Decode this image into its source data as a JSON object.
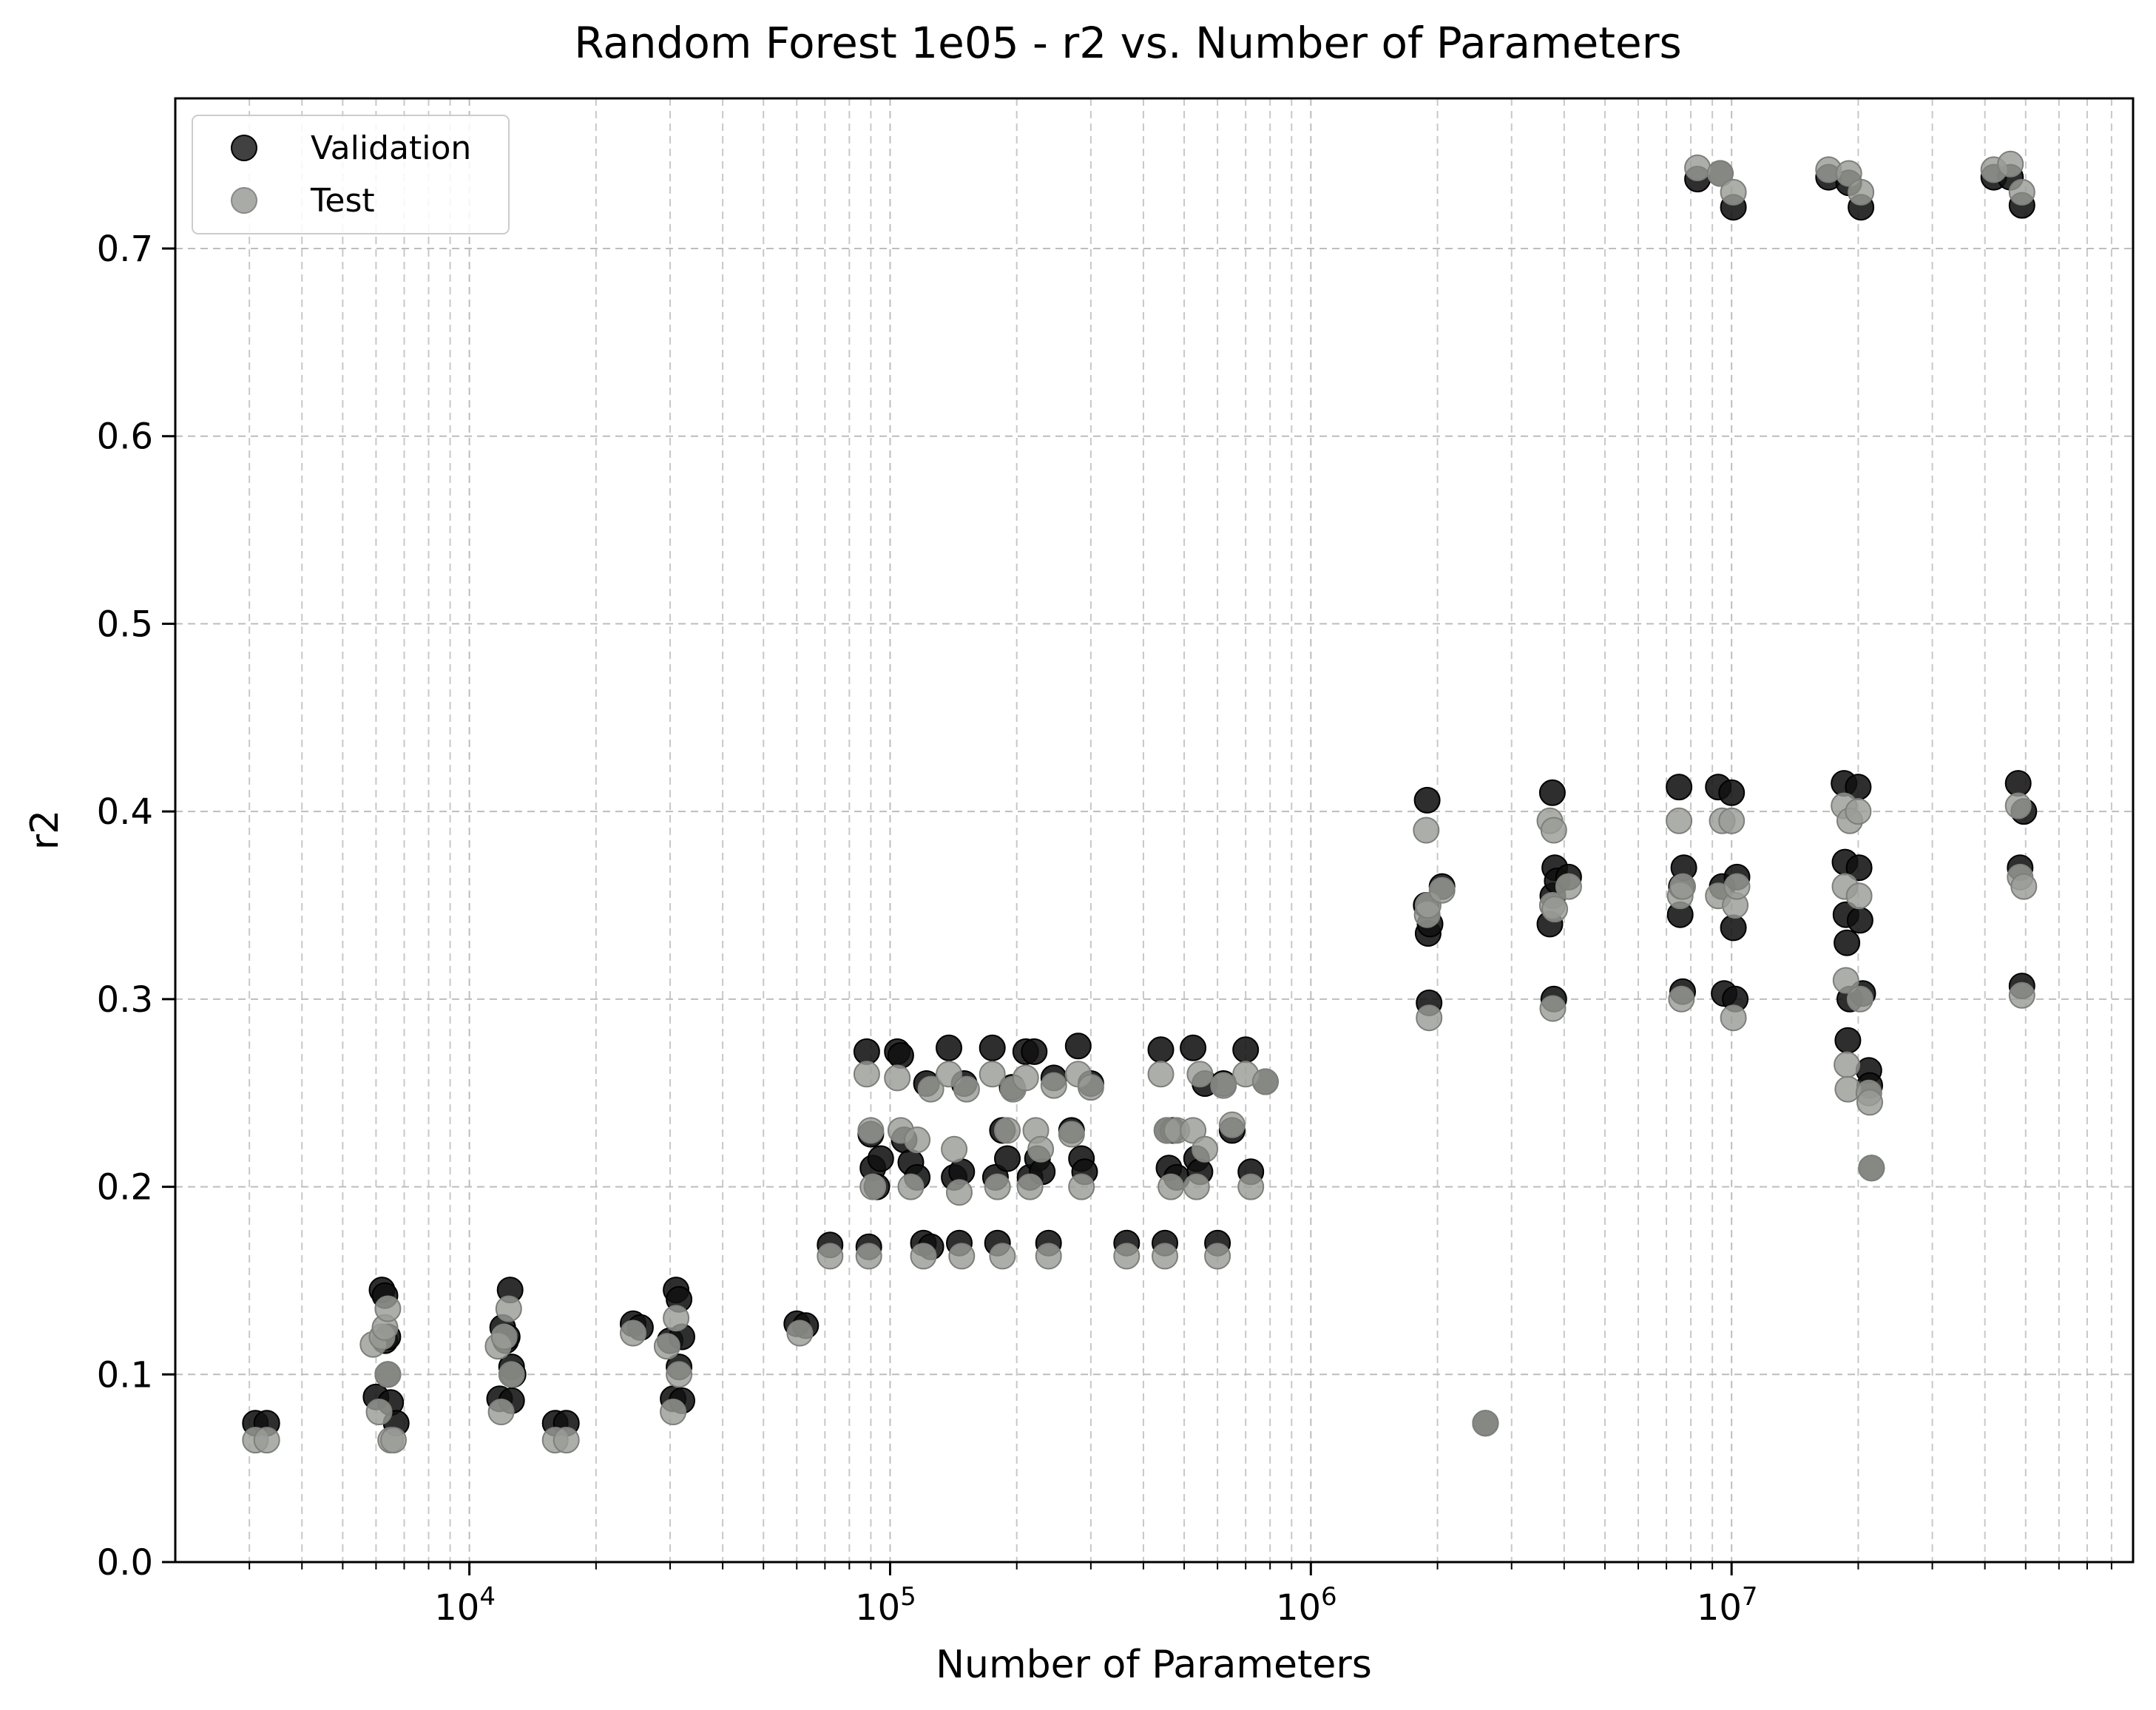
{
  "chart_data": {
    "type": "scatter",
    "title": "Random Forest 1e05 - r2 vs. Number of Parameters",
    "xlabel": "Number of Parameters",
    "ylabel": "r2",
    "xscale": "log",
    "xlim": [
      2000,
      90000000
    ],
    "ylim": [
      0.0,
      0.78
    ],
    "grid": true,
    "legend_position": "top-left",
    "x_ticks": [
      {
        "value": 10000,
        "base": "10",
        "exp": "4"
      },
      {
        "value": 100000,
        "base": "10",
        "exp": "5"
      },
      {
        "value": 1000000,
        "base": "10",
        "exp": "6"
      },
      {
        "value": 10000000,
        "base": "10",
        "exp": "7"
      }
    ],
    "y_ticks": [
      {
        "value": 0.0,
        "label": "0.0"
      },
      {
        "value": 0.1,
        "label": "0.1"
      },
      {
        "value": 0.2,
        "label": "0.2"
      },
      {
        "value": 0.3,
        "label": "0.3"
      },
      {
        "value": 0.4,
        "label": "0.4"
      },
      {
        "value": 0.5,
        "label": "0.5"
      },
      {
        "value": 0.6,
        "label": "0.6"
      },
      {
        "value": 0.7,
        "label": "0.7"
      }
    ],
    "series": [
      {
        "name": "Validation",
        "color": "#111111",
        "points": [
          [
            3100,
            0.074
          ],
          [
            3300,
            0.074
          ],
          [
            6000,
            0.088
          ],
          [
            6200,
            0.145
          ],
          [
            6300,
            0.142
          ],
          [
            6300,
            0.118
          ],
          [
            6400,
            0.12
          ],
          [
            6400,
            0.1
          ],
          [
            6500,
            0.085
          ],
          [
            6700,
            0.074
          ],
          [
            11800,
            0.087
          ],
          [
            12000,
            0.125
          ],
          [
            12200,
            0.118
          ],
          [
            12300,
            0.12
          ],
          [
            12500,
            0.145
          ],
          [
            12600,
            0.104
          ],
          [
            12700,
            0.1
          ],
          [
            12600,
            0.086
          ],
          [
            16000,
            0.074
          ],
          [
            17000,
            0.074
          ],
          [
            24500,
            0.127
          ],
          [
            25500,
            0.125
          ],
          [
            30000,
            0.118
          ],
          [
            30500,
            0.087
          ],
          [
            31000,
            0.145
          ],
          [
            31500,
            0.14
          ],
          [
            31500,
            0.104
          ],
          [
            32000,
            0.12
          ],
          [
            32000,
            0.086
          ],
          [
            60000,
            0.127
          ],
          [
            63000,
            0.126
          ],
          [
            72000,
            0.169
          ],
          [
            88000,
            0.272
          ],
          [
            89000,
            0.168
          ],
          [
            90000,
            0.228
          ],
          [
            91000,
            0.21
          ],
          [
            93000,
            0.2
          ],
          [
            95000,
            0.215
          ],
          [
            104000,
            0.272
          ],
          [
            106000,
            0.27
          ],
          [
            108000,
            0.225
          ],
          [
            112000,
            0.213
          ],
          [
            116000,
            0.205
          ],
          [
            120000,
            0.17
          ],
          [
            122000,
            0.255
          ],
          [
            125000,
            0.168
          ],
          [
            138000,
            0.274
          ],
          [
            142000,
            0.205
          ],
          [
            146000,
            0.17
          ],
          [
            148000,
            0.208
          ],
          [
            150000,
            0.255
          ],
          [
            175000,
            0.274
          ],
          [
            178000,
            0.205
          ],
          [
            180000,
            0.17
          ],
          [
            185000,
            0.23
          ],
          [
            190000,
            0.215
          ],
          [
            195000,
            0.253
          ],
          [
            210000,
            0.272
          ],
          [
            215000,
            0.205
          ],
          [
            220000,
            0.272
          ],
          [
            224000,
            0.215
          ],
          [
            230000,
            0.208
          ],
          [
            238000,
            0.17
          ],
          [
            245000,
            0.258
          ],
          [
            270000,
            0.23
          ],
          [
            280000,
            0.275
          ],
          [
            285000,
            0.215
          ],
          [
            290000,
            0.208
          ],
          [
            300000,
            0.255
          ],
          [
            365000,
            0.17
          ],
          [
            440000,
            0.273
          ],
          [
            450000,
            0.17
          ],
          [
            455000,
            0.23
          ],
          [
            460000,
            0.21
          ],
          [
            470000,
            0.23
          ],
          [
            480000,
            0.205
          ],
          [
            525000,
            0.274
          ],
          [
            535000,
            0.215
          ],
          [
            545000,
            0.208
          ],
          [
            560000,
            0.255
          ],
          [
            600000,
            0.17
          ],
          [
            620000,
            0.255
          ],
          [
            650000,
            0.23
          ],
          [
            700000,
            0.273
          ],
          [
            720000,
            0.208
          ],
          [
            780000,
            0.256
          ],
          [
            1880000,
            0.35
          ],
          [
            1890000,
            0.406
          ],
          [
            1900000,
            0.335
          ],
          [
            1910000,
            0.298
          ],
          [
            1920000,
            0.34
          ],
          [
            2050000,
            0.36
          ],
          [
            2600000,
            0.074
          ],
          [
            3700000,
            0.34
          ],
          [
            3750000,
            0.41
          ],
          [
            3760000,
            0.355
          ],
          [
            3780000,
            0.3
          ],
          [
            3800000,
            0.37
          ],
          [
            3850000,
            0.363
          ],
          [
            4100000,
            0.365
          ],
          [
            7500000,
            0.413
          ],
          [
            7550000,
            0.345
          ],
          [
            7600000,
            0.36
          ],
          [
            7650000,
            0.304
          ],
          [
            7700000,
            0.37
          ],
          [
            8300000,
            0.737
          ],
          [
            9300000,
            0.413
          ],
          [
            9400000,
            0.74
          ],
          [
            9500000,
            0.36
          ],
          [
            9600000,
            0.303
          ],
          [
            10000000,
            0.41
          ],
          [
            10100000,
            0.722
          ],
          [
            10100000,
            0.338
          ],
          [
            10200000,
            0.3
          ],
          [
            10300000,
            0.365
          ],
          [
            17000000,
            0.738
          ],
          [
            18500000,
            0.415
          ],
          [
            18600000,
            0.373
          ],
          [
            18700000,
            0.345
          ],
          [
            18800000,
            0.33
          ],
          [
            18900000,
            0.278
          ],
          [
            19000000,
            0.735
          ],
          [
            19100000,
            0.3
          ],
          [
            20000000,
            0.413
          ],
          [
            20100000,
            0.37
          ],
          [
            20200000,
            0.342
          ],
          [
            20300000,
            0.722
          ],
          [
            20500000,
            0.303
          ],
          [
            21200000,
            0.262
          ],
          [
            21300000,
            0.254
          ],
          [
            21500000,
            0.21
          ],
          [
            42000000,
            0.738
          ],
          [
            46000000,
            0.738
          ],
          [
            48000000,
            0.415
          ],
          [
            48500000,
            0.37
          ],
          [
            49000000,
            0.723
          ],
          [
            49000000,
            0.307
          ],
          [
            49500000,
            0.4
          ]
        ]
      },
      {
        "name": "Test",
        "color": "#9a9c97",
        "points": [
          [
            3100,
            0.065
          ],
          [
            3300,
            0.065
          ],
          [
            5900,
            0.116
          ],
          [
            6100,
            0.08
          ],
          [
            6200,
            0.12
          ],
          [
            6300,
            0.125
          ],
          [
            6400,
            0.135
          ],
          [
            6400,
            0.1
          ],
          [
            6500,
            0.065
          ],
          [
            6600,
            0.065
          ],
          [
            11700,
            0.115
          ],
          [
            11900,
            0.08
          ],
          [
            12100,
            0.12
          ],
          [
            12400,
            0.135
          ],
          [
            12600,
            0.1
          ],
          [
            16000,
            0.065
          ],
          [
            17000,
            0.065
          ],
          [
            24500,
            0.122
          ],
          [
            29500,
            0.115
          ],
          [
            30500,
            0.08
          ],
          [
            31000,
            0.13
          ],
          [
            31500,
            0.1
          ],
          [
            61000,
            0.122
          ],
          [
            72000,
            0.163
          ],
          [
            88000,
            0.26
          ],
          [
            89000,
            0.163
          ],
          [
            90000,
            0.23
          ],
          [
            91000,
            0.2
          ],
          [
            104000,
            0.258
          ],
          [
            106000,
            0.23
          ],
          [
            112000,
            0.2
          ],
          [
            116000,
            0.225
          ],
          [
            120000,
            0.163
          ],
          [
            125000,
            0.252
          ],
          [
            138000,
            0.26
          ],
          [
            142000,
            0.22
          ],
          [
            146000,
            0.197
          ],
          [
            148000,
            0.163
          ],
          [
            152000,
            0.252
          ],
          [
            175000,
            0.26
          ],
          [
            180000,
            0.2
          ],
          [
            185000,
            0.163
          ],
          [
            190000,
            0.23
          ],
          [
            196000,
            0.252
          ],
          [
            210000,
            0.258
          ],
          [
            215000,
            0.2
          ],
          [
            222000,
            0.23
          ],
          [
            228000,
            0.22
          ],
          [
            238000,
            0.163
          ],
          [
            245000,
            0.254
          ],
          [
            270000,
            0.228
          ],
          [
            280000,
            0.26
          ],
          [
            285000,
            0.2
          ],
          [
            300000,
            0.253
          ],
          [
            365000,
            0.163
          ],
          [
            440000,
            0.26
          ],
          [
            450000,
            0.163
          ],
          [
            455000,
            0.23
          ],
          [
            465000,
            0.2
          ],
          [
            480000,
            0.23
          ],
          [
            525000,
            0.23
          ],
          [
            535000,
            0.2
          ],
          [
            545000,
            0.26
          ],
          [
            560000,
            0.22
          ],
          [
            600000,
            0.163
          ],
          [
            620000,
            0.254
          ],
          [
            650000,
            0.233
          ],
          [
            700000,
            0.26
          ],
          [
            720000,
            0.2
          ],
          [
            780000,
            0.256
          ],
          [
            1880000,
            0.39
          ],
          [
            1890000,
            0.345
          ],
          [
            1900000,
            0.35
          ],
          [
            1910000,
            0.29
          ],
          [
            2050000,
            0.358
          ],
          [
            2600000,
            0.074
          ],
          [
            3700000,
            0.395
          ],
          [
            3750000,
            0.35
          ],
          [
            3760000,
            0.295
          ],
          [
            3780000,
            0.39
          ],
          [
            3800000,
            0.348
          ],
          [
            4100000,
            0.36
          ],
          [
            7500000,
            0.395
          ],
          [
            7550000,
            0.355
          ],
          [
            7600000,
            0.3
          ],
          [
            7650000,
            0.36
          ],
          [
            8300000,
            0.743
          ],
          [
            9300000,
            0.355
          ],
          [
            9400000,
            0.74
          ],
          [
            9500000,
            0.395
          ],
          [
            10000000,
            0.395
          ],
          [
            10100000,
            0.73
          ],
          [
            10100000,
            0.29
          ],
          [
            10200000,
            0.35
          ],
          [
            10300000,
            0.36
          ],
          [
            17000000,
            0.742
          ],
          [
            18500000,
            0.403
          ],
          [
            18600000,
            0.36
          ],
          [
            18700000,
            0.31
          ],
          [
            18800000,
            0.265
          ],
          [
            18900000,
            0.252
          ],
          [
            19000000,
            0.74
          ],
          [
            19100000,
            0.395
          ],
          [
            20000000,
            0.4
          ],
          [
            20100000,
            0.355
          ],
          [
            20200000,
            0.3
          ],
          [
            20300000,
            0.73
          ],
          [
            21200000,
            0.25
          ],
          [
            21300000,
            0.245
          ],
          [
            21500000,
            0.21
          ],
          [
            42000000,
            0.742
          ],
          [
            46000000,
            0.745
          ],
          [
            48000000,
            0.403
          ],
          [
            48500000,
            0.365
          ],
          [
            49000000,
            0.73
          ],
          [
            49000000,
            0.302
          ],
          [
            49500000,
            0.36
          ]
        ]
      }
    ]
  }
}
